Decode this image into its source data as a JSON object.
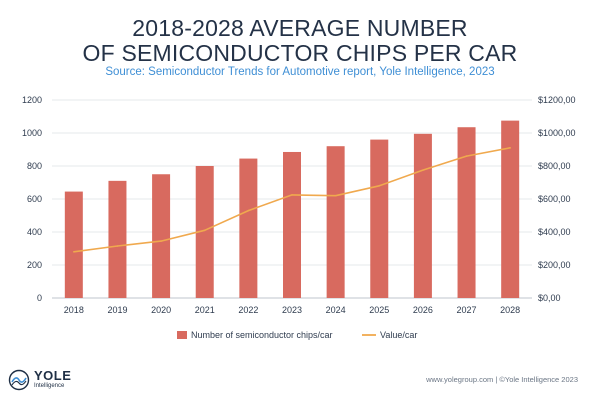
{
  "header": {
    "title_line1": "2018-2028 AVERAGE NUMBER",
    "title_line2": "OF SEMICONDUCTOR CHIPS PER CAR",
    "subtitle": "Source: Semiconductor Trends for Automotive report, Yole Intelligence, 2023"
  },
  "chart_data": {
    "type": "bar",
    "title": "2018-2028 AVERAGE NUMBER OF SEMICONDUCTOR CHIPS PER CAR",
    "subtitle": "Source: Semiconductor Trends for Automotive report, Yole Intelligence, 2023",
    "categories": [
      "2018",
      "2019",
      "2020",
      "2021",
      "2022",
      "2023",
      "2024",
      "2025",
      "2026",
      "2027",
      "2028"
    ],
    "series": [
      {
        "name": "Number of semiconductor chips/car",
        "type": "bar",
        "axis": "left",
        "color": "#d86a5f",
        "values": [
          645,
          710,
          750,
          800,
          845,
          885,
          920,
          960,
          995,
          1035,
          1075
        ]
      },
      {
        "name": "Value/car",
        "type": "line",
        "axis": "right",
        "color": "#f0a94e",
        "values": [
          280,
          315,
          345,
          410,
          530,
          625,
          620,
          680,
          775,
          860,
          910
        ]
      }
    ],
    "y_left": {
      "ylim": [
        0,
        1200
      ],
      "ticks": [
        0,
        200,
        400,
        600,
        800,
        1000,
        1200
      ],
      "tick_labels": [
        "0",
        "200",
        "400",
        "600",
        "800",
        "1000",
        "1200"
      ]
    },
    "y_right": {
      "ylim": [
        0,
        1200
      ],
      "ticks": [
        0,
        200,
        400,
        600,
        800,
        1000,
        1200
      ],
      "tick_labels": [
        "$0,00",
        "$200,00",
        "$400,00",
        "$600,00",
        "$800,00",
        "$1000,00",
        "$1200,00"
      ]
    },
    "grid": true,
    "legend_position": "bottom"
  },
  "logo": {
    "name": "YOLE",
    "sub": "Intelligence"
  },
  "footer": {
    "text": "www.yolegroup.com | ©Yole Intelligence 2023"
  }
}
